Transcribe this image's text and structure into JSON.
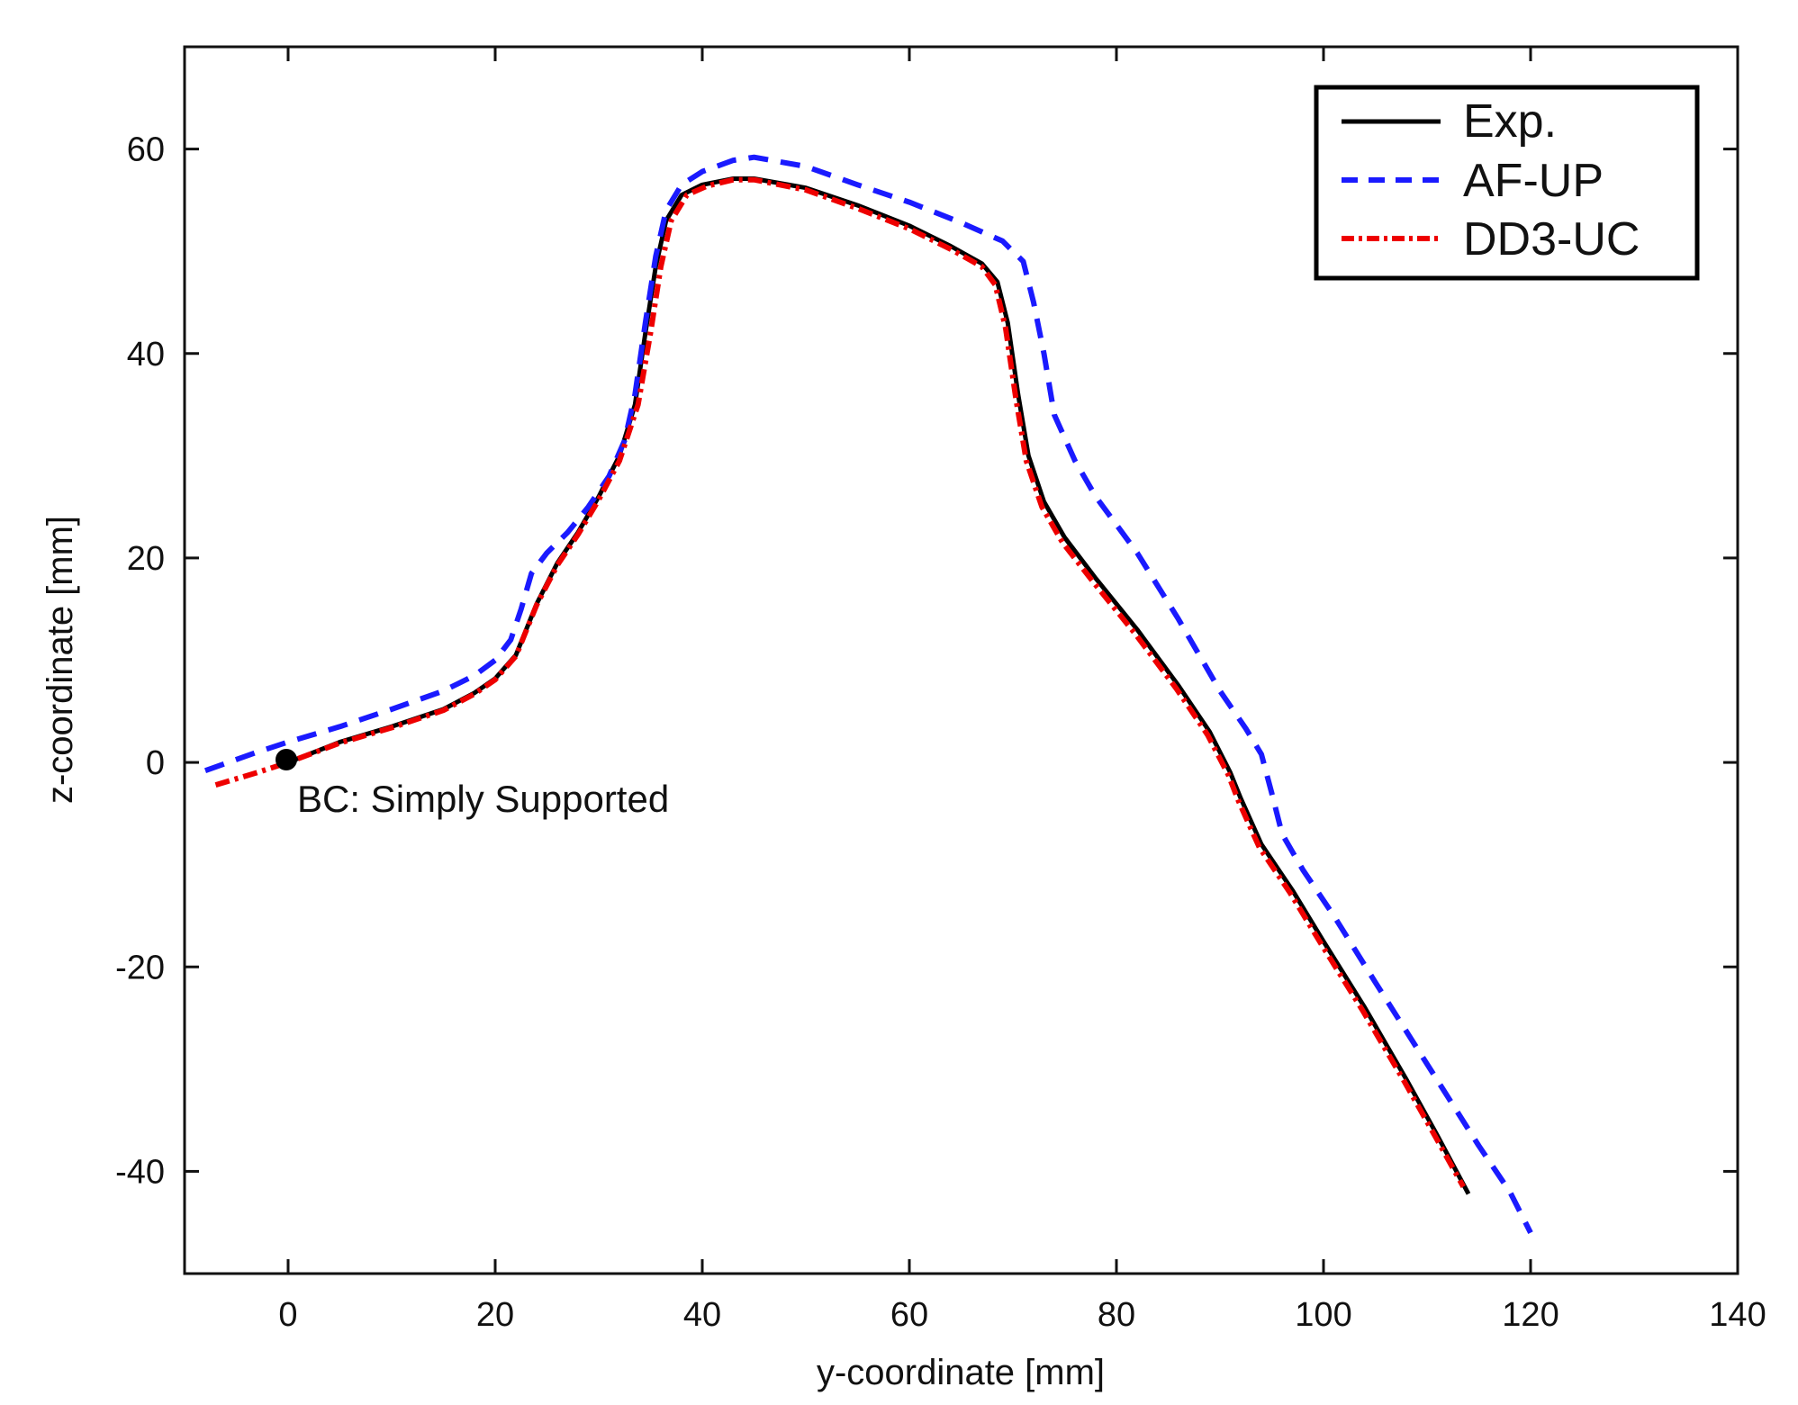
{
  "chart_data": {
    "type": "line",
    "title": "",
    "xlabel": "y-coordinate [mm]",
    "ylabel": "z-coordinate [mm]",
    "xlim": [
      -10,
      140
    ],
    "ylim": [
      -50,
      70
    ],
    "xticks": [
      0,
      20,
      40,
      60,
      80,
      100,
      120,
      140
    ],
    "yticks": [
      -40,
      -20,
      0,
      20,
      40,
      60
    ],
    "grid": false,
    "legend_position": "top-right",
    "series": [
      {
        "name": "Exp.",
        "color": "#000000",
        "style": "solid",
        "points": [
          [
            0,
            0
          ],
          [
            5,
            2
          ],
          [
            10,
            3.5
          ],
          [
            15,
            5.2
          ],
          [
            18,
            6.8
          ],
          [
            20,
            8.2
          ],
          [
            22,
            10.5
          ],
          [
            24,
            15.5
          ],
          [
            26,
            19.5
          ],
          [
            28,
            22.5
          ],
          [
            30,
            26
          ],
          [
            32,
            30
          ],
          [
            33.5,
            35
          ],
          [
            34.5,
            42
          ],
          [
            35.5,
            48.5
          ],
          [
            36.5,
            53
          ],
          [
            38,
            55.5
          ],
          [
            40,
            56.5
          ],
          [
            43,
            57.1
          ],
          [
            45,
            57.1
          ],
          [
            50,
            56.2
          ],
          [
            55,
            54.5
          ],
          [
            60,
            52.5
          ],
          [
            64,
            50.5
          ],
          [
            67,
            48.8
          ],
          [
            68.5,
            47
          ],
          [
            69.5,
            43
          ],
          [
            70.5,
            36
          ],
          [
            71.5,
            30
          ],
          [
            73,
            25.5
          ],
          [
            75,
            22
          ],
          [
            78,
            18
          ],
          [
            82,
            13
          ],
          [
            86,
            7.5
          ],
          [
            89,
            3
          ],
          [
            91,
            -1
          ],
          [
            92,
            -3.5
          ],
          [
            94,
            -8
          ],
          [
            97,
            -12.5
          ],
          [
            100,
            -17.5
          ],
          [
            104,
            -24
          ],
          [
            108,
            -31
          ],
          [
            111,
            -36.5
          ],
          [
            114,
            -42.2
          ]
        ]
      },
      {
        "name": "AF-UP",
        "color": "#1a1aff",
        "style": "dashed",
        "points": [
          [
            -8,
            -0.8
          ],
          [
            -3,
            1
          ],
          [
            0,
            2
          ],
          [
            5,
            3.5
          ],
          [
            10,
            5.2
          ],
          [
            15,
            7
          ],
          [
            18,
            8.5
          ],
          [
            20,
            10
          ],
          [
            21.5,
            12
          ],
          [
            22.5,
            15
          ],
          [
            23.5,
            18.5
          ],
          [
            25,
            20.5
          ],
          [
            27,
            22.5
          ],
          [
            29,
            25
          ],
          [
            31,
            28
          ],
          [
            32.5,
            31.5
          ],
          [
            33.5,
            36
          ],
          [
            34.5,
            43
          ],
          [
            35.5,
            49.5
          ],
          [
            36.5,
            54
          ],
          [
            38,
            56.5
          ],
          [
            40,
            57.8
          ],
          [
            43,
            58.9
          ],
          [
            45,
            59.2
          ],
          [
            50,
            58.3
          ],
          [
            55,
            56.5
          ],
          [
            60,
            54.8
          ],
          [
            65,
            52.8
          ],
          [
            69,
            51
          ],
          [
            71,
            49
          ],
          [
            72,
            45
          ],
          [
            73,
            40
          ],
          [
            74,
            34
          ],
          [
            76,
            29.5
          ],
          [
            78,
            26
          ],
          [
            82,
            20.5
          ],
          [
            86,
            14
          ],
          [
            90,
            7
          ],
          [
            92.5,
            3.3
          ],
          [
            94,
            0.8
          ],
          [
            95,
            -3
          ],
          [
            96,
            -7
          ],
          [
            98,
            -10.5
          ],
          [
            101,
            -15
          ],
          [
            105,
            -21.5
          ],
          [
            110,
            -29.5
          ],
          [
            115,
            -37.5
          ],
          [
            118,
            -42
          ],
          [
            120,
            -46
          ]
        ]
      },
      {
        "name": "DD3-UC",
        "color": "#ee0000",
        "style": "dashdot",
        "points": [
          [
            -7,
            -2.2
          ],
          [
            -3,
            -1
          ],
          [
            0,
            0
          ],
          [
            5,
            1.9
          ],
          [
            10,
            3.4
          ],
          [
            15,
            5.1
          ],
          [
            18,
            6.7
          ],
          [
            20,
            8.1
          ],
          [
            22,
            10.4
          ],
          [
            24,
            15.4
          ],
          [
            26,
            19.3
          ],
          [
            28,
            22.3
          ],
          [
            30,
            25.7
          ],
          [
            32,
            29.5
          ],
          [
            33.8,
            35
          ],
          [
            35,
            42
          ],
          [
            36,
            48.5
          ],
          [
            37,
            53
          ],
          [
            38.5,
            55.5
          ],
          [
            40.5,
            56.4
          ],
          [
            43,
            57
          ],
          [
            45,
            57
          ],
          [
            50,
            56
          ],
          [
            55,
            54.2
          ],
          [
            60,
            52.2
          ],
          [
            64,
            50.2
          ],
          [
            67,
            48.5
          ],
          [
            68.3,
            46.7
          ],
          [
            69.3,
            42.5
          ],
          [
            70.3,
            35.5
          ],
          [
            71.3,
            29.5
          ],
          [
            72.8,
            25
          ],
          [
            74.8,
            21.5
          ],
          [
            77.8,
            17.6
          ],
          [
            81.8,
            12.6
          ],
          [
            85.8,
            7.2
          ],
          [
            88.8,
            2.7
          ],
          [
            90.8,
            -1.2
          ],
          [
            91.8,
            -3.8
          ],
          [
            93.8,
            -8.3
          ],
          [
            96.8,
            -12.8
          ],
          [
            99.8,
            -17.8
          ],
          [
            103.8,
            -24.3
          ],
          [
            107.8,
            -31.2
          ],
          [
            110.8,
            -36.6
          ],
          [
            113.5,
            -41.5
          ]
        ]
      }
    ],
    "annotations": [
      {
        "text": "BC: Simply Supported",
        "marker": "filled-circle",
        "at": [
          0,
          0
        ]
      }
    ]
  }
}
